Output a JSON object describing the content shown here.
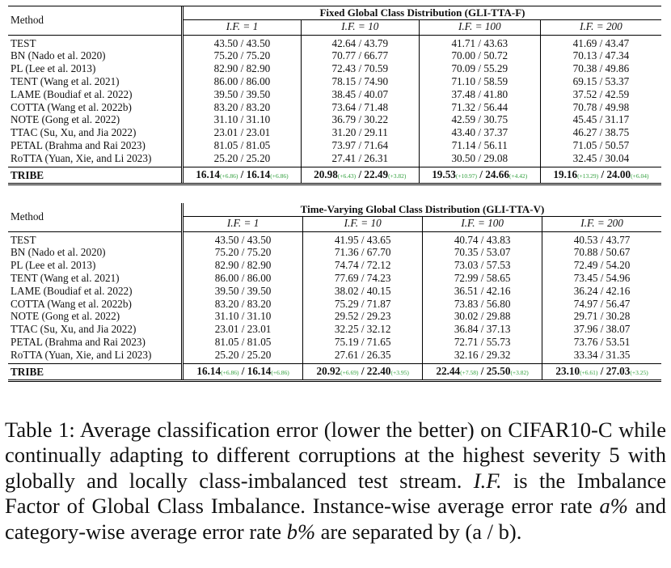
{
  "method_header": "Method",
  "if_prefix": "I.F. = ",
  "table_a": {
    "group_title": "Fixed Global Class Distribution (GLI-TTA-F)",
    "if_values": [
      "1",
      "10",
      "100",
      "200"
    ],
    "rows": [
      {
        "method": "TEST",
        "values": [
          "43.50 / 43.50",
          "42.64 / 43.79",
          "41.71 / 43.63",
          "41.69 / 43.47"
        ]
      },
      {
        "method": "BN (Nado et al. 2020)",
        "values": [
          "75.20 / 75.20",
          "70.77 / 66.77",
          "70.00 / 50.72",
          "70.13 / 47.34"
        ]
      },
      {
        "method": "PL (Lee et al. 2013)",
        "values": [
          "82.90 / 82.90",
          "72.43 / 70.59",
          "70.09 / 55.29",
          "70.38 / 49.86"
        ]
      },
      {
        "method": "TENT (Wang et al. 2021)",
        "values": [
          "86.00 / 86.00",
          "78.15 / 74.90",
          "71.10 / 58.59",
          "69.15 / 53.37"
        ]
      },
      {
        "method": "LAME (Boudiaf et al. 2022)",
        "values": [
          "39.50 / 39.50",
          "38.45 / 40.07",
          "37.48 / 41.80",
          "37.52 / 42.59"
        ]
      },
      {
        "method": "COTTA (Wang et al. 2022b)",
        "values": [
          "83.20 / 83.20",
          "73.64 / 71.48",
          "71.32 / 56.44",
          "70.78 / 49.98"
        ]
      },
      {
        "method": "NOTE (Gong et al. 2022)",
        "values": [
          "31.10 / 31.10",
          "36.79 / 30.22",
          "42.59 / 30.75",
          "45.45 / 31.17"
        ]
      },
      {
        "method": "TTAC (Su, Xu, and Jia 2022)",
        "values": [
          "23.01 / 23.01",
          "31.20 / 29.11",
          "43.40 / 37.37",
          "46.27 / 38.75"
        ]
      },
      {
        "method": "PETAL (Brahma and Rai 2023)",
        "values": [
          "81.05 / 81.05",
          "73.97 / 71.64",
          "71.14 / 56.11",
          "71.05 / 50.57"
        ]
      },
      {
        "method": "RoTTA (Yuan, Xie, and Li 2023)",
        "values": [
          "25.20 / 25.20",
          "27.41 / 26.31",
          "30.50 / 29.08",
          "32.45 / 30.04"
        ]
      }
    ],
    "tribe": {
      "method": "TRIBE",
      "cells": [
        {
          "a": "16.14",
          "ai": "(+6.86)",
          "b": "16.14",
          "bi": "(+6.86)"
        },
        {
          "a": "20.98",
          "ai": "(+6.43)",
          "b": "22.49",
          "bi": "(+3.82)"
        },
        {
          "a": "19.53",
          "ai": "(+10.97)",
          "b": "24.66",
          "bi": "(+4.42)"
        },
        {
          "a": "19.16",
          "ai": "(+13.29)",
          "b": "24.00",
          "bi": "(+6.04)"
        }
      ]
    }
  },
  "table_b": {
    "group_title": "Time-Varying Global Class Distribution (GLI-TTA-V)",
    "if_values": [
      "1",
      "10",
      "100",
      "200"
    ],
    "rows": [
      {
        "method": "TEST",
        "values": [
          "43.50 / 43.50",
          "41.95 / 43.65",
          "40.74 / 43.83",
          "40.53 / 43.77"
        ]
      },
      {
        "method": "BN (Nado et al. 2020)",
        "values": [
          "75.20 / 75.20",
          "71.36 / 67.70",
          "70.35 / 53.07",
          "70.88 / 50.67"
        ]
      },
      {
        "method": "PL (Lee et al. 2013)",
        "values": [
          "82.90 / 82.90",
          "74.74 / 72.12",
          "73.03 / 57.53",
          "72.49 / 54.20"
        ]
      },
      {
        "method": "TENT (Wang et al. 2021)",
        "values": [
          "86.00 / 86.00",
          "77.69 / 74.23",
          "72.99 / 58.65",
          "73.45 / 54.96"
        ]
      },
      {
        "method": "LAME (Boudiaf et al. 2022)",
        "values": [
          "39.50 / 39.50",
          "38.02 / 40.15",
          "36.51 / 42.16",
          "36.24 / 42.16"
        ]
      },
      {
        "method": "COTTA (Wang et al. 2022b)",
        "values": [
          "83.20 / 83.20",
          "75.29 / 71.87",
          "73.83 / 56.80",
          "74.97 / 56.47"
        ]
      },
      {
        "method": "NOTE (Gong et al. 2022)",
        "values": [
          "31.10 / 31.10",
          "29.52 / 29.23",
          "30.02 / 29.88",
          "29.71 / 30.28"
        ]
      },
      {
        "method": "TTAC (Su, Xu, and Jia 2022)",
        "values": [
          "23.01 / 23.01",
          "32.25 / 32.12",
          "36.84 / 37.13",
          "37.96 / 38.07"
        ]
      },
      {
        "method": "PETAL (Brahma and Rai 2023)",
        "values": [
          "81.05 / 81.05",
          "75.19 / 71.65",
          "72.71 / 55.73",
          "73.76 / 53.51"
        ]
      },
      {
        "method": "RoTTA (Yuan, Xie, and Li 2023)",
        "values": [
          "25.20 / 25.20",
          "27.61 / 26.35",
          "32.16 / 29.32",
          "33.34 / 31.35"
        ]
      }
    ],
    "tribe": {
      "method": "TRIBE",
      "cells": [
        {
          "a": "16.14",
          "ai": "(+6.86)",
          "b": "16.14",
          "bi": "(+6.86)"
        },
        {
          "a": "20.92",
          "ai": "(+6.69)",
          "b": "22.40",
          "bi": "(+3.95)"
        },
        {
          "a": "22.44",
          "ai": "(+7.58)",
          "b": "25.50",
          "bi": "(+3.82)"
        },
        {
          "a": "23.10",
          "ai": "(+6.61)",
          "b": "27.03",
          "bi": "(+3.25)"
        }
      ]
    }
  },
  "caption": {
    "label": "Table 1:",
    "text1": " Average classification error (lower the better) on CIFAR10-C while continually adapting to different corruptions at the highest severity 5 with globally and locally class-imbalanced test stream. ",
    "if_abbr": "I.F.",
    "text2": " is the Imbalance Factor of Global Class Imbalance. Instance-wise average error rate ",
    "var_a": "a%",
    "text3": " and category-wise average error rate ",
    "var_b": "b%",
    "text4": " are separated by (a / b)."
  }
}
